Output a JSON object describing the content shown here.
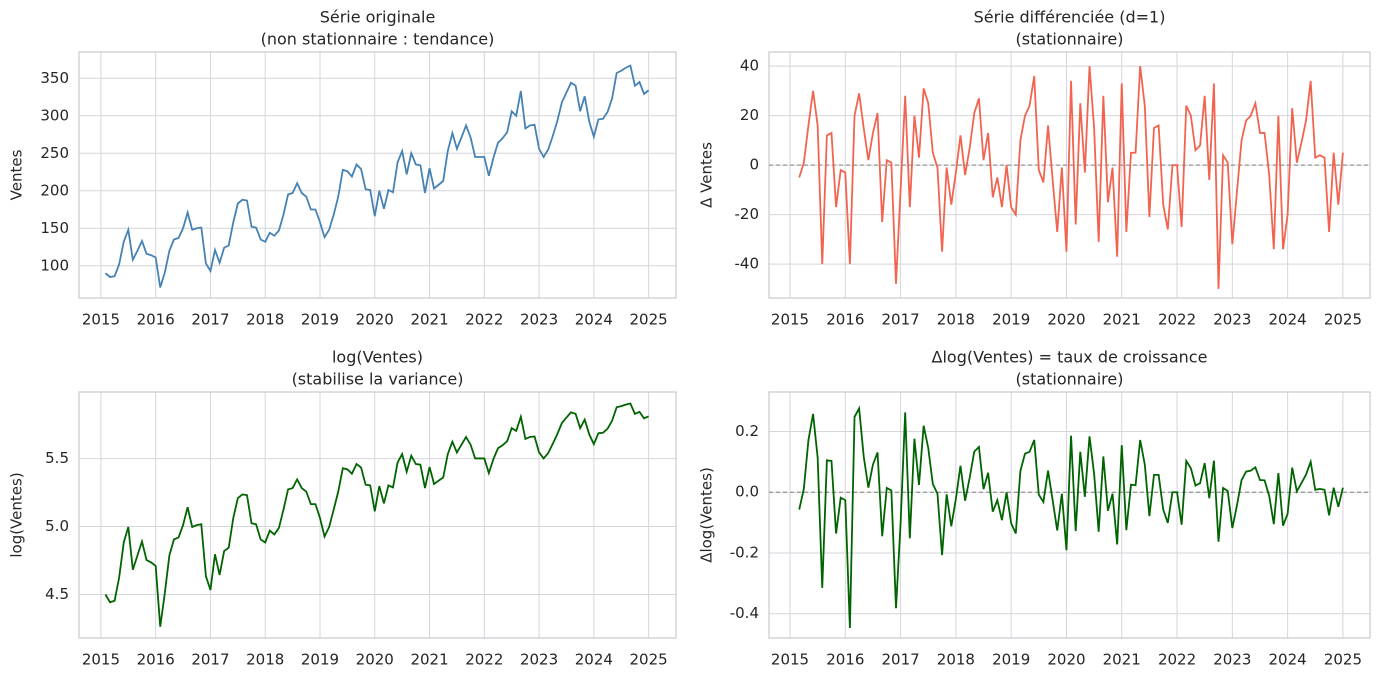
{
  "chart_data": [
    {
      "type": "line",
      "title": "Série originale",
      "subtitle": "(non stationnaire : tendance)",
      "y_label": "Ventes",
      "color": "#4682b4",
      "grid": true,
      "xlim": [
        2014.6,
        2025.5
      ],
      "xticks": [
        2015,
        2016,
        2017,
        2018,
        2019,
        2020,
        2021,
        2022,
        2023,
        2024,
        2025
      ],
      "ylim": [
        57,
        385
      ],
      "yticks": [
        100,
        150,
        200,
        250,
        300,
        350
      ],
      "x": [
        2015.083,
        2015.167,
        2015.25,
        2015.333,
        2015.417,
        2015.5,
        2015.583,
        2015.667,
        2015.75,
        2015.833,
        2015.917,
        2016,
        2016.083,
        2016.167,
        2016.25,
        2016.333,
        2016.417,
        2016.5,
        2016.583,
        2016.667,
        2016.75,
        2016.833,
        2016.917,
        2017,
        2017.083,
        2017.167,
        2017.25,
        2017.333,
        2017.417,
        2017.5,
        2017.583,
        2017.667,
        2017.75,
        2017.833,
        2017.917,
        2018,
        2018.083,
        2018.167,
        2018.25,
        2018.333,
        2018.417,
        2018.5,
        2018.583,
        2018.667,
        2018.75,
        2018.833,
        2018.917,
        2019,
        2019.083,
        2019.167,
        2019.25,
        2019.333,
        2019.417,
        2019.5,
        2019.583,
        2019.667,
        2019.75,
        2019.833,
        2019.917,
        2020,
        2020.083,
        2020.167,
        2020.25,
        2020.333,
        2020.417,
        2020.5,
        2020.583,
        2020.667,
        2020.75,
        2020.833,
        2020.917,
        2021,
        2021.083,
        2021.167,
        2021.25,
        2021.333,
        2021.417,
        2021.5,
        2021.583,
        2021.667,
        2021.75,
        2021.833,
        2021.917,
        2022,
        2022.083,
        2022.167,
        2022.25,
        2022.333,
        2022.417,
        2022.5,
        2022.583,
        2022.667,
        2022.75,
        2022.833,
        2022.917,
        2023,
        2023.083,
        2023.167,
        2023.25,
        2023.333,
        2023.417,
        2023.5,
        2023.583,
        2023.667,
        2023.75,
        2023.833,
        2023.917,
        2024,
        2024.083,
        2024.167,
        2024.25,
        2024.333,
        2024.417,
        2024.5,
        2024.583,
        2024.667,
        2024.75,
        2024.833,
        2024.917,
        2025
      ],
      "values": [
        90,
        85,
        86,
        102,
        132,
        148,
        108,
        120,
        133,
        116,
        114,
        111,
        71,
        91,
        120,
        135,
        137,
        150,
        171,
        148,
        150,
        151,
        103,
        93,
        121,
        104,
        124,
        127,
        158,
        183,
        188,
        187,
        152,
        151,
        135,
        132,
        144,
        140,
        147,
        168,
        195,
        197,
        210,
        197,
        192,
        175,
        175,
        158,
        138,
        148,
        168,
        192,
        228,
        226,
        219,
        235,
        229,
        202,
        201,
        166,
        200,
        176,
        201,
        198,
        238,
        253,
        222,
        250,
        235,
        234,
        197,
        230,
        203,
        208,
        213,
        253,
        277,
        256,
        271,
        287,
        271,
        245,
        245,
        245,
        220,
        244,
        264,
        270,
        278,
        306,
        300,
        333,
        283,
        287,
        288,
        256,
        245,
        255,
        273,
        293,
        318,
        331,
        344,
        340,
        306,
        326,
        292,
        272,
        295,
        296,
        305,
        323,
        357,
        360,
        364,
        367,
        340,
        345,
        329,
        334
      ]
    },
    {
      "type": "line",
      "title": "Série différenciée (d=1)",
      "subtitle": "(stationnaire)",
      "y_label": "Δ Ventes",
      "color": "#f26450",
      "grid": true,
      "reference_line": 0,
      "xlim": [
        2014.62,
        2025.49
      ],
      "xticks": [
        2015,
        2016,
        2017,
        2018,
        2019,
        2020,
        2021,
        2022,
        2023,
        2024,
        2025
      ],
      "ylim": [
        -53.7,
        45.7
      ],
      "yticks": [
        -40,
        -20,
        0,
        20,
        40
      ],
      "x": [
        2015.167,
        2015.25,
        2015.333,
        2015.417,
        2015.5,
        2015.583,
        2015.667,
        2015.75,
        2015.833,
        2015.917,
        2016,
        2016.083,
        2016.167,
        2016.25,
        2016.333,
        2016.417,
        2016.5,
        2016.583,
        2016.667,
        2016.75,
        2016.833,
        2016.917,
        2017,
        2017.083,
        2017.167,
        2017.25,
        2017.333,
        2017.417,
        2017.5,
        2017.583,
        2017.667,
        2017.75,
        2017.833,
        2017.917,
        2018,
        2018.083,
        2018.167,
        2018.25,
        2018.333,
        2018.417,
        2018.5,
        2018.583,
        2018.667,
        2018.75,
        2018.833,
        2018.917,
        2019,
        2019.083,
        2019.167,
        2019.25,
        2019.333,
        2019.417,
        2019.5,
        2019.583,
        2019.667,
        2019.75,
        2019.833,
        2019.917,
        2020,
        2020.083,
        2020.167,
        2020.25,
        2020.333,
        2020.417,
        2020.5,
        2020.583,
        2020.667,
        2020.75,
        2020.833,
        2020.917,
        2021,
        2021.083,
        2021.167,
        2021.25,
        2021.333,
        2021.417,
        2021.5,
        2021.583,
        2021.667,
        2021.75,
        2021.833,
        2021.917,
        2022,
        2022.083,
        2022.167,
        2022.25,
        2022.333,
        2022.417,
        2022.5,
        2022.583,
        2022.667,
        2022.75,
        2022.833,
        2022.917,
        2023,
        2023.083,
        2023.167,
        2023.25,
        2023.333,
        2023.417,
        2023.5,
        2023.583,
        2023.667,
        2023.75,
        2023.833,
        2023.917,
        2024,
        2024.083,
        2024.167,
        2024.25,
        2024.333,
        2024.417,
        2024.5,
        2024.583,
        2024.667,
        2024.75,
        2024.833,
        2024.917,
        2025
      ],
      "values": [
        -5,
        1,
        16,
        30,
        16,
        -40,
        12,
        13,
        -17,
        -2,
        -3,
        -40,
        20,
        29,
        15,
        2,
        13,
        21,
        -23,
        2,
        1,
        -48,
        -10,
        28,
        -17,
        20,
        3,
        31,
        25,
        5,
        -1,
        -35,
        -1,
        -16,
        -3,
        12,
        -4,
        7,
        21,
        27,
        2,
        13,
        -13,
        -5,
        -17,
        0,
        -17,
        -20,
        10,
        20,
        24,
        36,
        -2,
        -7,
        16,
        -6,
        -27,
        -1,
        -35,
        34,
        -24,
        25,
        -3,
        40,
        15,
        -31,
        28,
        -15,
        -1,
        -37,
        33,
        -27,
        5,
        5,
        40,
        24,
        -21,
        15,
        16,
        -16,
        -26,
        0,
        0,
        -25,
        24,
        20,
        6,
        8,
        28,
        -6,
        33,
        -50,
        4,
        1,
        -32,
        -11,
        10,
        18,
        20,
        25,
        13,
        13,
        -4,
        -34,
        20,
        -34,
        -20,
        23,
        1,
        9,
        18,
        34,
        3,
        4,
        3,
        -27,
        5,
        -16,
        5
      ]
    },
    {
      "type": "line",
      "title": "log(Ventes)",
      "subtitle": "(stabilise la variance)",
      "y_label": "log(Ventes)",
      "color": "#006400",
      "grid": true,
      "xlim": [
        2014.6,
        2025.5
      ],
      "xticks": [
        2015,
        2016,
        2017,
        2018,
        2019,
        2020,
        2021,
        2022,
        2023,
        2024,
        2025
      ],
      "ylim": [
        4.18,
        5.99
      ],
      "yticks": [
        4.5,
        {
          "value": 5,
          "label": "5.0"
        },
        5.5
      ],
      "x": [
        2015.083,
        2015.167,
        2015.25,
        2015.333,
        2015.417,
        2015.5,
        2015.583,
        2015.667,
        2015.75,
        2015.833,
        2015.917,
        2016,
        2016.083,
        2016.167,
        2016.25,
        2016.333,
        2016.417,
        2016.5,
        2016.583,
        2016.667,
        2016.75,
        2016.833,
        2016.917,
        2017,
        2017.083,
        2017.167,
        2017.25,
        2017.333,
        2017.417,
        2017.5,
        2017.583,
        2017.667,
        2017.75,
        2017.833,
        2017.917,
        2018,
        2018.083,
        2018.167,
        2018.25,
        2018.333,
        2018.417,
        2018.5,
        2018.583,
        2018.667,
        2018.75,
        2018.833,
        2018.917,
        2019,
        2019.083,
        2019.167,
        2019.25,
        2019.333,
        2019.417,
        2019.5,
        2019.583,
        2019.667,
        2019.75,
        2019.833,
        2019.917,
        2020,
        2020.083,
        2020.167,
        2020.25,
        2020.333,
        2020.417,
        2020.5,
        2020.583,
        2020.667,
        2020.75,
        2020.833,
        2020.917,
        2021,
        2021.083,
        2021.167,
        2021.25,
        2021.333,
        2021.417,
        2021.5,
        2021.583,
        2021.667,
        2021.75,
        2021.833,
        2021.917,
        2022,
        2022.083,
        2022.167,
        2022.25,
        2022.333,
        2022.417,
        2022.5,
        2022.583,
        2022.667,
        2022.75,
        2022.833,
        2022.917,
        2023,
        2023.083,
        2023.167,
        2023.25,
        2023.333,
        2023.417,
        2023.5,
        2023.583,
        2023.667,
        2023.75,
        2023.833,
        2023.917,
        2024,
        2024.083,
        2024.167,
        2024.25,
        2024.333,
        2024.417,
        2024.5,
        2024.583,
        2024.667,
        2024.75,
        2024.833,
        2024.917,
        2025
      ],
      "values": [
        4.5,
        4.443,
        4.454,
        4.625,
        4.883,
        4.997,
        4.682,
        4.787,
        4.89,
        4.754,
        4.736,
        4.71,
        4.263,
        4.511,
        4.787,
        4.905,
        4.92,
        5.011,
        5.142,
        4.997,
        5.011,
        5.017,
        4.635,
        4.533,
        4.796,
        4.644,
        4.82,
        4.844,
        5.063,
        5.209,
        5.236,
        5.231,
        5.024,
        5.017,
        4.905,
        4.883,
        4.97,
        4.942,
        4.99,
        5.124,
        5.273,
        5.283,
        5.347,
        5.283,
        5.257,
        5.165,
        5.165,
        5.063,
        4.927,
        4.997,
        5.124,
        5.257,
        5.429,
        5.421,
        5.389,
        5.46,
        5.434,
        5.308,
        5.303,
        5.112,
        5.298,
        5.17,
        5.303,
        5.288,
        5.472,
        5.533,
        5.403,
        5.521,
        5.46,
        5.455,
        5.283,
        5.438,
        5.313,
        5.338,
        5.361,
        5.533,
        5.624,
        5.545,
        5.602,
        5.659,
        5.602,
        5.501,
        5.501,
        5.501,
        5.394,
        5.497,
        5.576,
        5.598,
        5.628,
        5.724,
        5.704,
        5.808,
        5.645,
        5.659,
        5.663,
        5.545,
        5.501,
        5.541,
        5.609,
        5.68,
        5.762,
        5.802,
        5.841,
        5.829,
        5.724,
        5.787,
        5.677,
        5.606,
        5.687,
        5.69,
        5.72,
        5.778,
        5.878,
        5.886,
        5.897,
        5.905,
        5.829,
        5.844,
        5.796,
        5.811
      ]
    },
    {
      "type": "line",
      "title": "Δlog(Ventes) = taux de croissance",
      "subtitle": "(stationnaire)",
      "y_label": "Δlog(Ventes)",
      "color": "#006400",
      "grid": true,
      "reference_line": 0,
      "xlim": [
        2014.62,
        2025.49
      ],
      "xticks": [
        2015,
        2016,
        2017,
        2018,
        2019,
        2020,
        2021,
        2022,
        2023,
        2024,
        2025
      ],
      "ylim": [
        -0.48,
        0.33
      ],
      "yticks": [
        -0.4,
        -0.2,
        {
          "value": 0,
          "label": "0.0"
        },
        0.2
      ],
      "x": [
        2015.167,
        2015.25,
        2015.333,
        2015.417,
        2015.5,
        2015.583,
        2015.667,
        2015.75,
        2015.833,
        2015.917,
        2016,
        2016.083,
        2016.167,
        2016.25,
        2016.333,
        2016.417,
        2016.5,
        2016.583,
        2016.667,
        2016.75,
        2016.833,
        2016.917,
        2017,
        2017.083,
        2017.167,
        2017.25,
        2017.333,
        2017.417,
        2017.5,
        2017.583,
        2017.667,
        2017.75,
        2017.833,
        2017.917,
        2018,
        2018.083,
        2018.167,
        2018.25,
        2018.333,
        2018.417,
        2018.5,
        2018.583,
        2018.667,
        2018.75,
        2018.833,
        2018.917,
        2019,
        2019.083,
        2019.167,
        2019.25,
        2019.333,
        2019.417,
        2019.5,
        2019.583,
        2019.667,
        2019.75,
        2019.833,
        2019.917,
        2020,
        2020.083,
        2020.167,
        2020.25,
        2020.333,
        2020.417,
        2020.5,
        2020.583,
        2020.667,
        2020.75,
        2020.833,
        2020.917,
        2021,
        2021.083,
        2021.167,
        2021.25,
        2021.333,
        2021.417,
        2021.5,
        2021.583,
        2021.667,
        2021.75,
        2021.833,
        2021.917,
        2022,
        2022.083,
        2022.167,
        2022.25,
        2022.333,
        2022.417,
        2022.5,
        2022.583,
        2022.667,
        2022.75,
        2022.833,
        2022.917,
        2023,
        2023.083,
        2023.167,
        2023.25,
        2023.333,
        2023.417,
        2023.5,
        2023.583,
        2023.667,
        2023.75,
        2023.833,
        2023.917,
        2024,
        2024.083,
        2024.167,
        2024.25,
        2024.333,
        2024.417,
        2024.5,
        2024.583,
        2024.667,
        2024.75,
        2024.833,
        2024.917,
        2025
      ],
      "values": [
        -0.057,
        0.011,
        0.171,
        0.258,
        0.114,
        -0.315,
        0.105,
        0.103,
        -0.136,
        -0.018,
        -0.026,
        -0.447,
        0.248,
        0.276,
        0.118,
        0.015,
        0.091,
        0.131,
        -0.145,
        0.014,
        0.006,
        -0.382,
        -0.102,
        0.263,
        -0.152,
        0.176,
        0.024,
        0.219,
        0.146,
        0.027,
        -0.005,
        -0.207,
        -0.007,
        -0.112,
        -0.022,
        0.087,
        -0.028,
        0.048,
        0.134,
        0.149,
        0.01,
        0.064,
        -0.064,
        -0.026,
        -0.092,
        0,
        -0.102,
        -0.136,
        0.07,
        0.127,
        0.133,
        0.172,
        -0.008,
        -0.032,
        0.071,
        -0.026,
        -0.126,
        -0.005,
        -0.191,
        0.186,
        -0.128,
        0.133,
        -0.015,
        0.184,
        0.061,
        -0.13,
        0.118,
        -0.061,
        -0.005,
        -0.172,
        0.155,
        -0.125,
        0.025,
        0.023,
        0.172,
        0.091,
        -0.079,
        0.057,
        0.057,
        -0.057,
        -0.101,
        0,
        0,
        -0.107,
        0.103,
        0.079,
        0.022,
        0.03,
        0.096,
        -0.02,
        0.104,
        -0.163,
        0.014,
        0.004,
        -0.118,
        -0.044,
        0.04,
        0.068,
        0.071,
        0.082,
        0.04,
        0.039,
        -0.012,
        -0.105,
        0.063,
        -0.11,
        -0.071,
        0.081,
        0.003,
        0.03,
        0.058,
        0.1,
        0.008,
        0.011,
        0.008,
        -0.076,
        0.015,
        -0.048,
        0.015
      ]
    }
  ]
}
